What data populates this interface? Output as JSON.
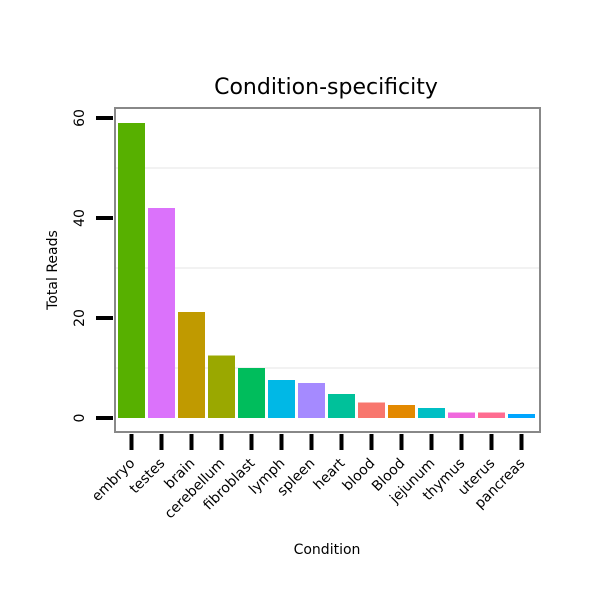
{
  "chart_data": {
    "type": "bar",
    "title": "Condition-specificity",
    "xlabel": "Condition",
    "ylabel": "Total Reads",
    "ylim": [
      0,
      62
    ],
    "yticks": [
      0,
      20,
      40,
      60
    ],
    "grid": true,
    "legend": "none",
    "categories": [
      "embryo",
      "testes",
      "brain",
      "cerebellum",
      "fibroblast",
      "lymph",
      "spleen",
      "heart",
      "blood",
      "Blood",
      "jejunum",
      "thymus",
      "uterus",
      "pancreas"
    ],
    "values": [
      59,
      42,
      21.2,
      12.5,
      10,
      7.6,
      7,
      4.8,
      3.1,
      2.6,
      2,
      1.1,
      1.1,
      0.8
    ],
    "colors": [
      "#57b000",
      "#db72fb",
      "#c09a00",
      "#9aa800",
      "#00bd5c",
      "#00b8e6",
      "#a58aff",
      "#00c19a",
      "#f8766d",
      "#e38900",
      "#00bfc4",
      "#f068dd",
      "#ff6c91",
      "#00a6ff"
    ]
  }
}
